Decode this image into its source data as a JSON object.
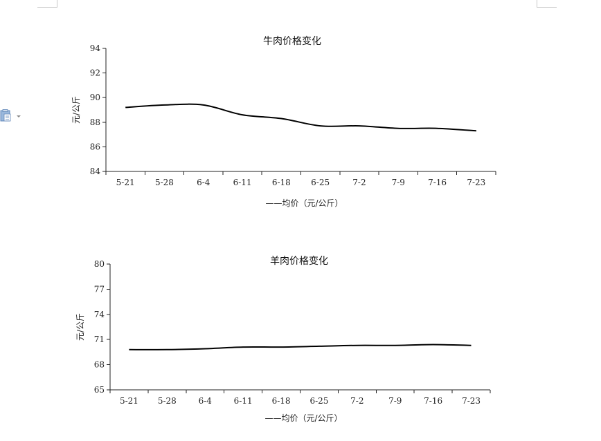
{
  "chart_data": [
    {
      "type": "line",
      "title": "牛肉价格变化",
      "ylabel": "元/公斤",
      "xlabel": "",
      "categories": [
        "5-21",
        "5-28",
        "6-4",
        "6-11",
        "6-18",
        "6-25",
        "7-2",
        "7-9",
        "7-16",
        "7-23"
      ],
      "series": [
        {
          "name": "均价（元/公斤）",
          "values": [
            89.2,
            89.4,
            89.4,
            88.6,
            88.3,
            87.7,
            87.7,
            87.5,
            87.5,
            87.3
          ]
        }
      ],
      "yticks": [
        84,
        86,
        88,
        90,
        92,
        94
      ],
      "ylim": [
        84,
        94
      ],
      "grid": false,
      "legend": "bottom",
      "legend_label": "——均价（元/公斤）"
    },
    {
      "type": "line",
      "title": "羊肉价格变化",
      "ylabel": "元/公斤",
      "xlabel": "",
      "categories": [
        "5-21",
        "5-28",
        "6-4",
        "6-11",
        "6-18",
        "6-25",
        "7-2",
        "7-9",
        "7-16",
        "7-23"
      ],
      "series": [
        {
          "name": "均价（元/公斤）",
          "values": [
            69.8,
            69.8,
            69.9,
            70.1,
            70.1,
            70.2,
            70.3,
            70.3,
            70.4,
            70.3
          ]
        }
      ],
      "yticks": [
        65,
        68,
        71,
        74,
        77,
        80
      ],
      "ylim": [
        65,
        80
      ],
      "grid": false,
      "legend": "bottom",
      "legend_label": "——均价（元/公斤）"
    }
  ],
  "ui": {
    "side_icon": "paste-options-icon"
  }
}
